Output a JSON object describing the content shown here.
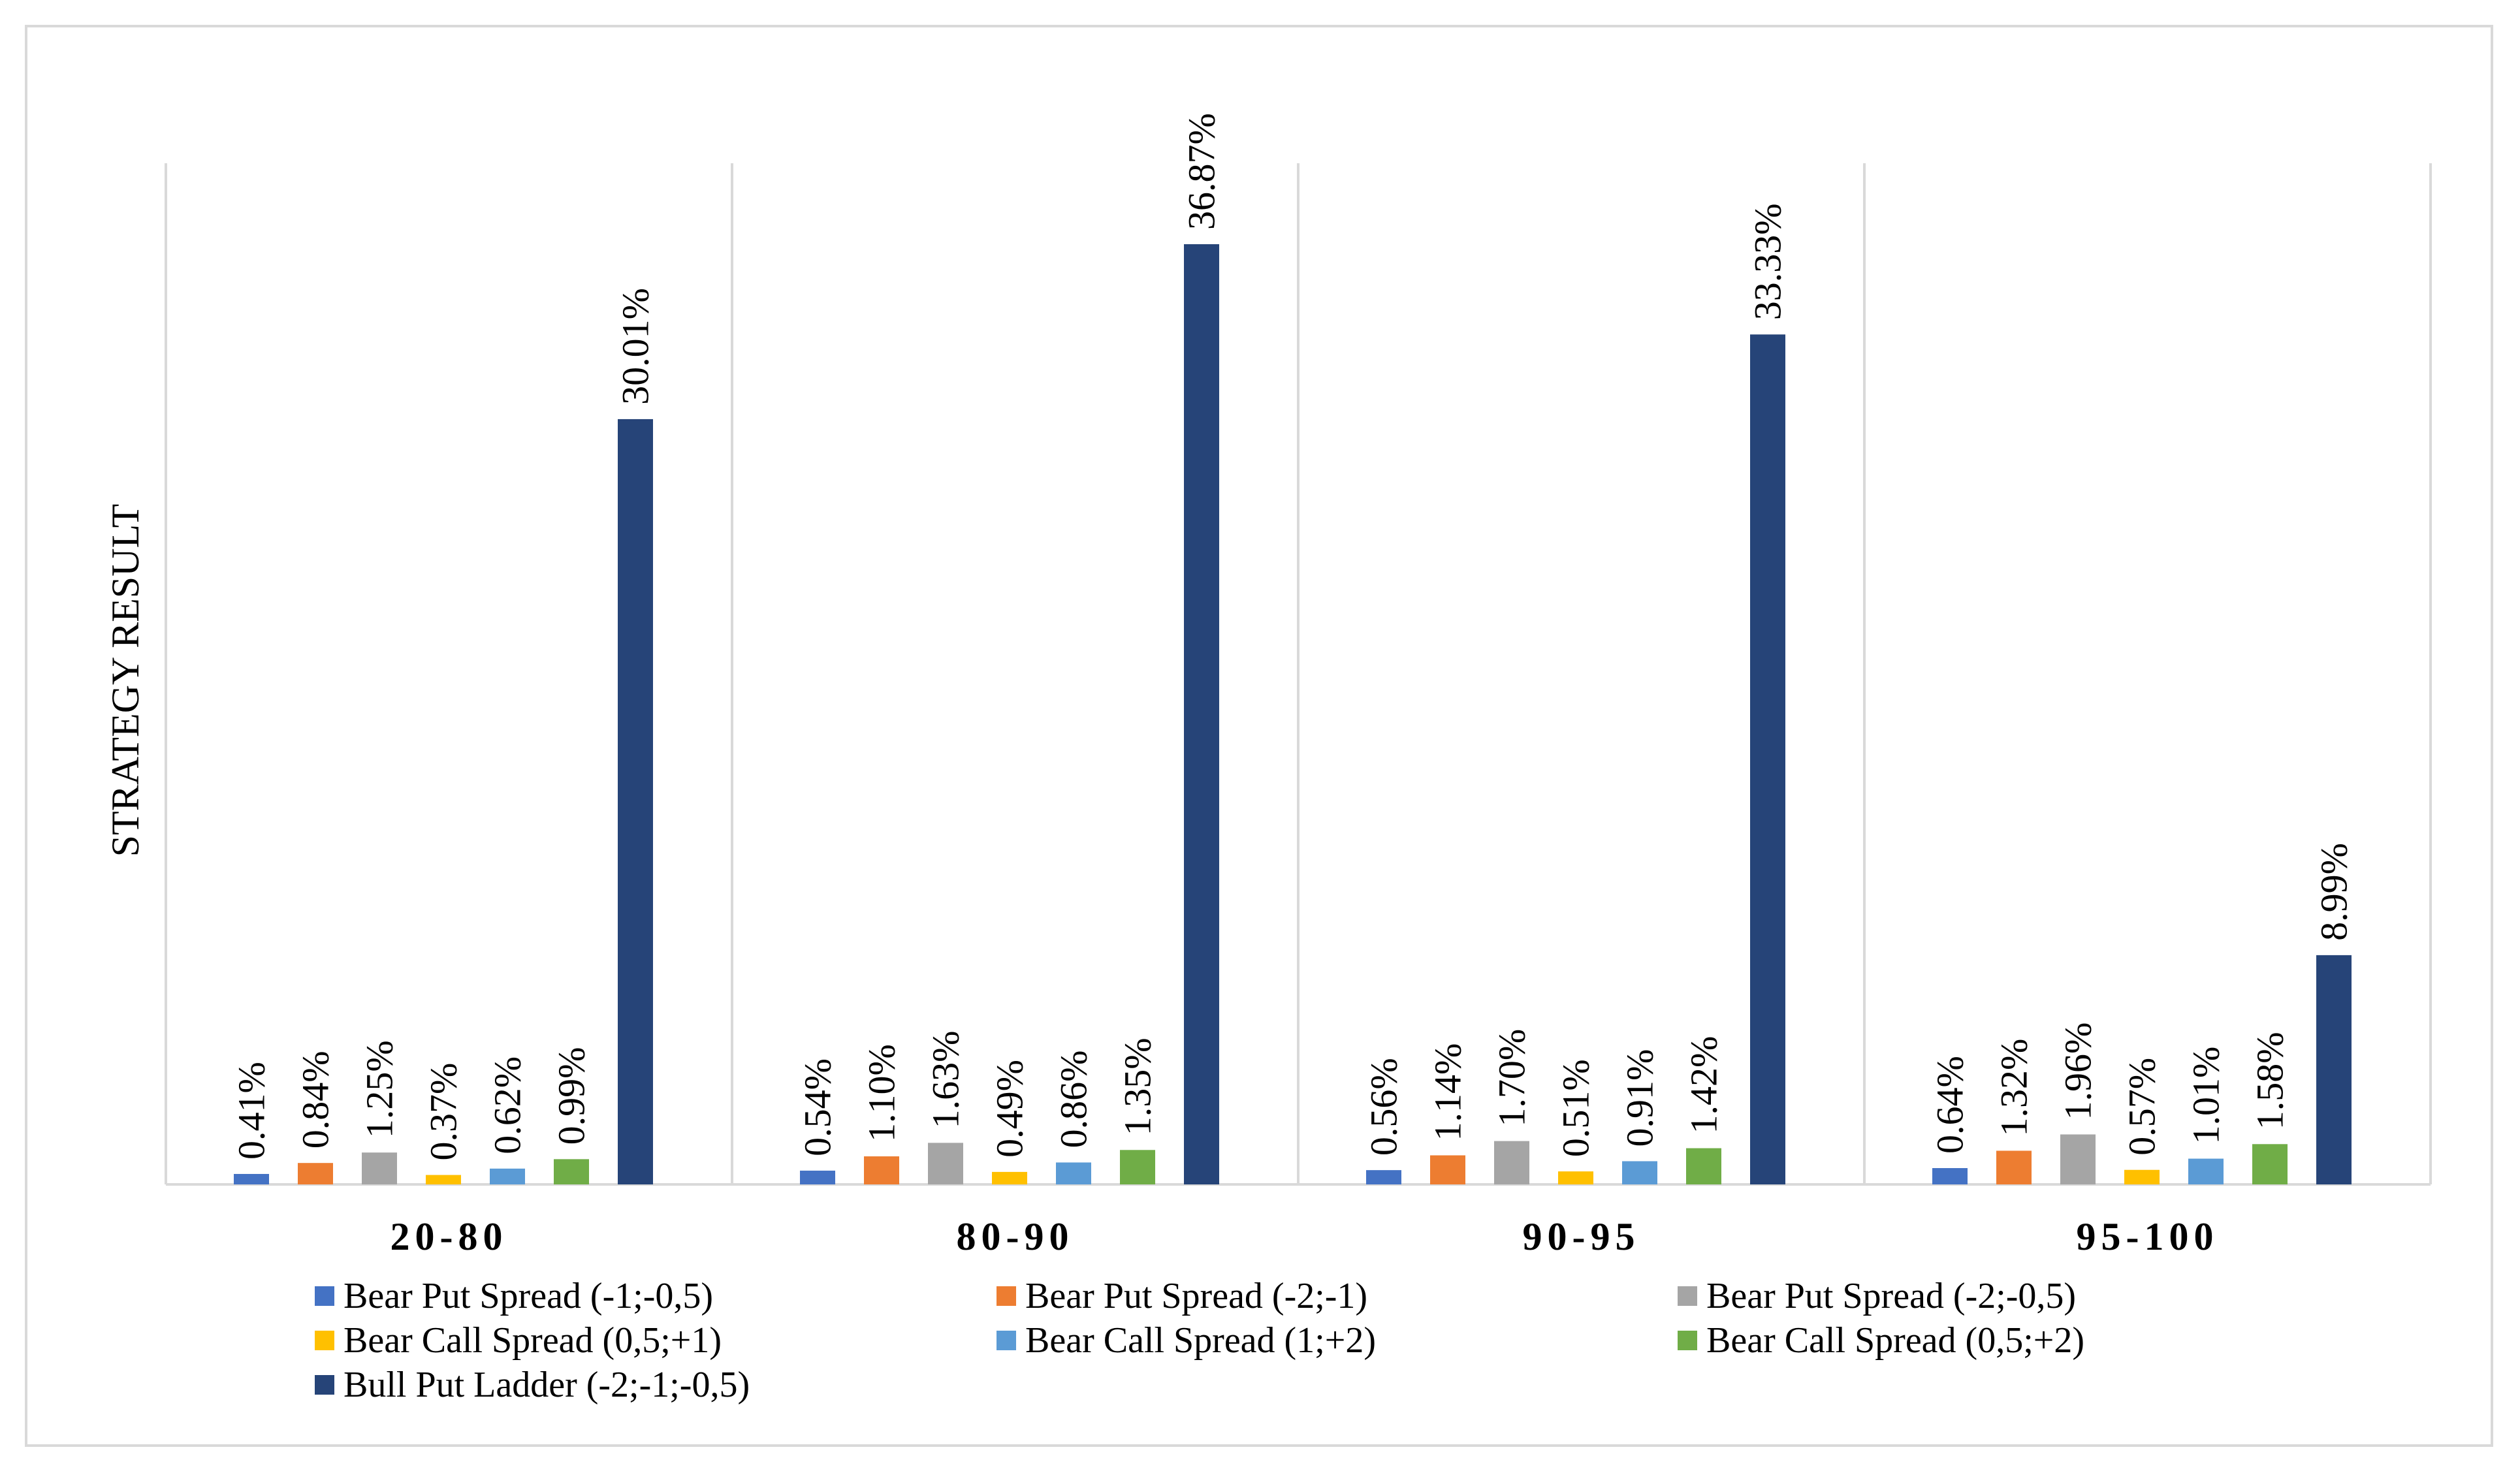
{
  "chart_data": {
    "type": "bar",
    "title": "",
    "xlabel": "",
    "ylabel": "STRATEGY RESULT",
    "ylim": [
      0,
      40
    ],
    "grid": false,
    "legend_position": "bottom",
    "categories": [
      "20-80",
      "80-90",
      "90-95",
      "95-100"
    ],
    "series": [
      {
        "name": "Bear Put Spread (-1;-0,5)",
        "color": "#4472C4",
        "values": [
          0.41,
          0.54,
          0.56,
          0.64
        ],
        "labels": [
          "0.41%",
          "0.54%",
          "0.56%",
          "0.64%"
        ]
      },
      {
        "name": "Bear Put Spread (-2;-1)",
        "color": "#ED7D31",
        "values": [
          0.84,
          1.1,
          1.14,
          1.32
        ],
        "labels": [
          "0.84%",
          "1.10%",
          "1.14%",
          "1.32%"
        ]
      },
      {
        "name": "Bear Put Spread (-2;-0,5)",
        "color": "#A5A5A5",
        "values": [
          1.25,
          1.63,
          1.7,
          1.96
        ],
        "labels": [
          "1.25%",
          "1.63%",
          "1.70%",
          "1.96%"
        ]
      },
      {
        "name": "Bear Call Spread (0,5;+1)",
        "color": "#FFC000",
        "values": [
          0.37,
          0.49,
          0.51,
          0.57
        ],
        "labels": [
          "0.37%",
          "0.49%",
          "0.51%",
          "0.57%"
        ]
      },
      {
        "name": "Bear Call Spread (1;+2)",
        "color": "#5B9BD5",
        "values": [
          0.62,
          0.86,
          0.91,
          1.01
        ],
        "labels": [
          "0.62%",
          "0.86%",
          "0.91%",
          "1.01%"
        ]
      },
      {
        "name": "Bear Call Spread (0,5;+2)",
        "color": "#70AD47",
        "values": [
          0.99,
          1.35,
          1.42,
          1.58
        ],
        "labels": [
          "0.99%",
          "1.35%",
          "1.42%",
          "1.58%"
        ]
      },
      {
        "name": "Bull Put Ladder (-2;-1;-0,5)",
        "color": "#264478",
        "values": [
          30.01,
          36.87,
          33.33,
          8.99
        ],
        "labels": [
          "30.01%",
          "36.87%",
          "33.33%",
          "8.99%"
        ]
      }
    ]
  }
}
